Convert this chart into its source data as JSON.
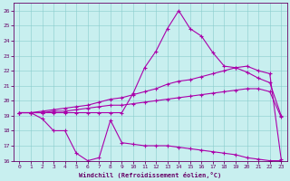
{
  "xlabel": "Windchill (Refroidissement éolien,°C)",
  "bg_color": "#c8efef",
  "line_color": "#aa00aa",
  "xlim": [
    -0.5,
    23.5
  ],
  "ylim": [
    16,
    26.5
  ],
  "xticks": [
    0,
    1,
    2,
    3,
    4,
    5,
    6,
    7,
    8,
    9,
    10,
    11,
    12,
    13,
    14,
    15,
    16,
    17,
    18,
    19,
    20,
    21,
    22,
    23
  ],
  "yticks": [
    16,
    17,
    18,
    19,
    20,
    21,
    22,
    23,
    24,
    25,
    26
  ],
  "line_wavy_x": [
    0,
    1,
    2,
    3,
    4,
    5,
    6,
    7,
    8,
    9,
    10,
    11,
    12,
    13,
    14,
    15,
    16,
    17,
    18,
    19,
    20,
    21,
    22,
    23
  ],
  "line_wavy_y": [
    19.2,
    19.2,
    18.8,
    18.0,
    18.0,
    16.5,
    16.0,
    16.2,
    18.7,
    17.2,
    17.1,
    17.0,
    17.0,
    17.0,
    16.9,
    16.8,
    16.7,
    16.6,
    16.5,
    16.4,
    16.2,
    16.1,
    16.0,
    16.0
  ],
  "line_low_x": [
    0,
    1,
    2,
    3,
    4,
    5,
    6,
    7,
    8,
    9,
    10,
    11,
    12,
    13,
    14,
    15,
    16,
    17,
    18,
    19,
    20,
    21,
    22,
    23
  ],
  "line_low_y": [
    19.2,
    19.2,
    19.2,
    19.3,
    19.3,
    19.4,
    19.5,
    19.6,
    19.7,
    19.7,
    19.8,
    19.9,
    20.0,
    20.1,
    20.2,
    20.3,
    20.4,
    20.5,
    20.6,
    20.7,
    20.8,
    20.8,
    20.6,
    18.9
  ],
  "line_high_x": [
    0,
    1,
    2,
    3,
    4,
    5,
    6,
    7,
    8,
    9,
    10,
    11,
    12,
    13,
    14,
    15,
    16,
    17,
    18,
    19,
    20,
    21,
    22,
    23
  ],
  "line_high_y": [
    19.2,
    19.2,
    19.3,
    19.4,
    19.5,
    19.6,
    19.7,
    19.9,
    20.1,
    20.2,
    20.4,
    20.6,
    20.8,
    21.1,
    21.3,
    21.4,
    21.6,
    21.8,
    22.0,
    22.2,
    21.9,
    21.5,
    21.2,
    19.0
  ],
  "line_peak_x": [
    0,
    1,
    2,
    3,
    4,
    5,
    6,
    7,
    8,
    9,
    10,
    11,
    12,
    13,
    14,
    15,
    16,
    17,
    18,
    19,
    20,
    21,
    22,
    23
  ],
  "line_peak_y": [
    19.2,
    19.2,
    19.2,
    19.2,
    19.2,
    19.2,
    19.2,
    19.2,
    19.2,
    19.2,
    20.5,
    22.2,
    23.3,
    24.8,
    26.0,
    24.8,
    24.3,
    23.2,
    22.3,
    22.2,
    22.3,
    22.0,
    21.8,
    16.1
  ]
}
